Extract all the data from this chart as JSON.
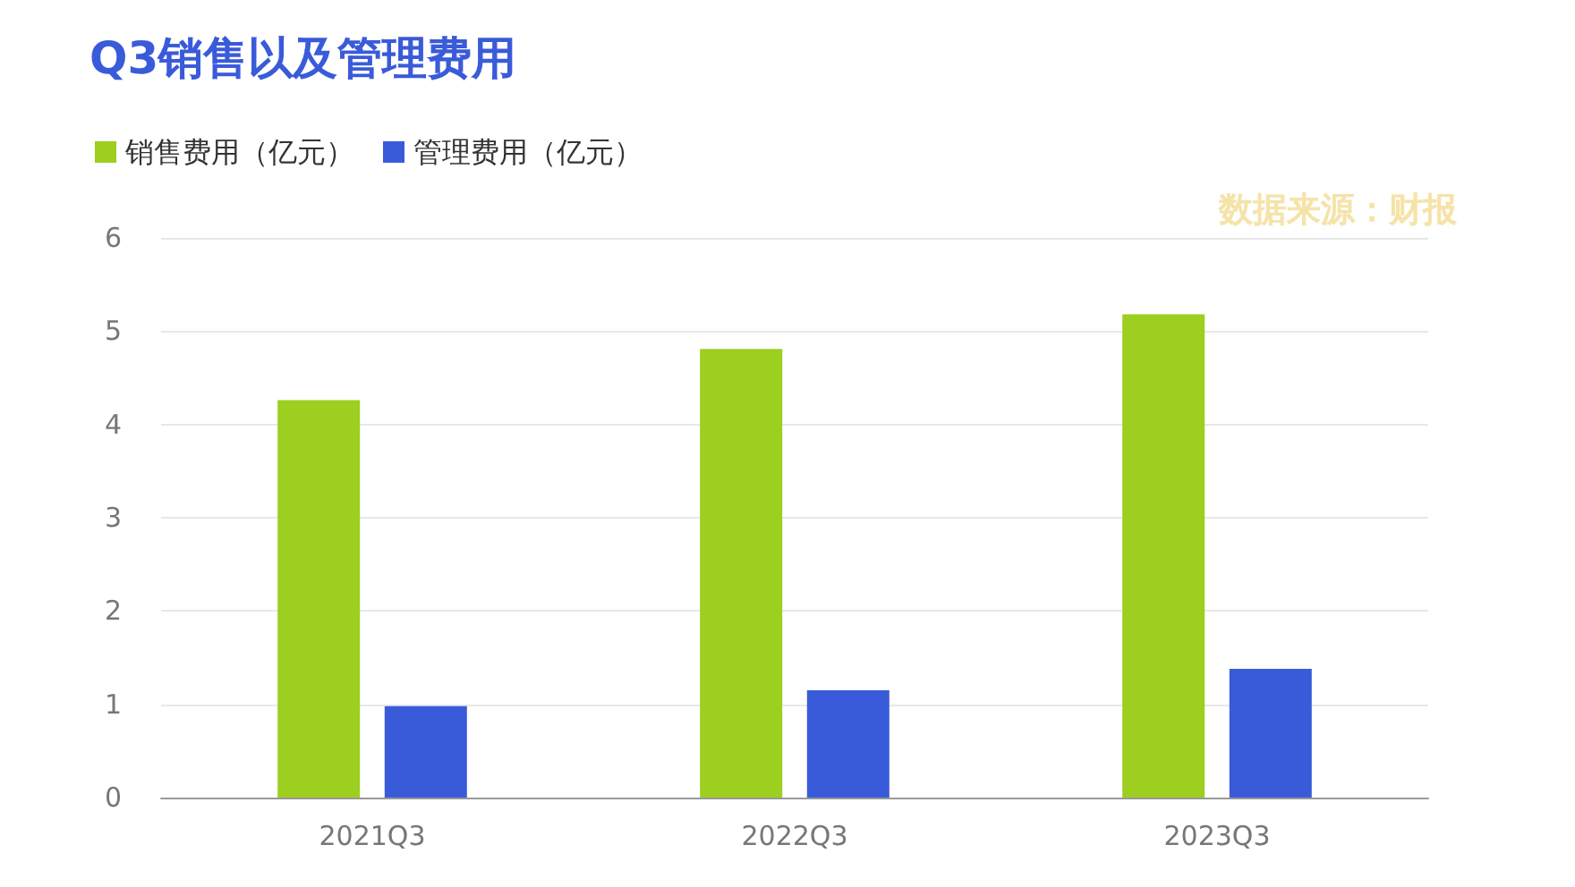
{
  "chart_data": {
    "type": "bar",
    "title": "Q3销售以及管理费用",
    "categories": [
      "2021Q3",
      "2022Q3",
      "2023Q3"
    ],
    "series": [
      {
        "name": "销售费用（亿元）",
        "color": "#9ccf1f",
        "values": [
          4.26,
          4.81,
          5.18
        ]
      },
      {
        "name": "管理费用（亿元）",
        "color": "#3a5bd9",
        "values": [
          0.98,
          1.15,
          1.38
        ]
      }
    ],
    "ylim": [
      0,
      6
    ],
    "yticks": [
      0,
      1,
      2,
      3,
      4,
      5,
      6
    ],
    "grid": "y",
    "legend": "top left",
    "annotations": [
      "数据来源：财报"
    ]
  }
}
